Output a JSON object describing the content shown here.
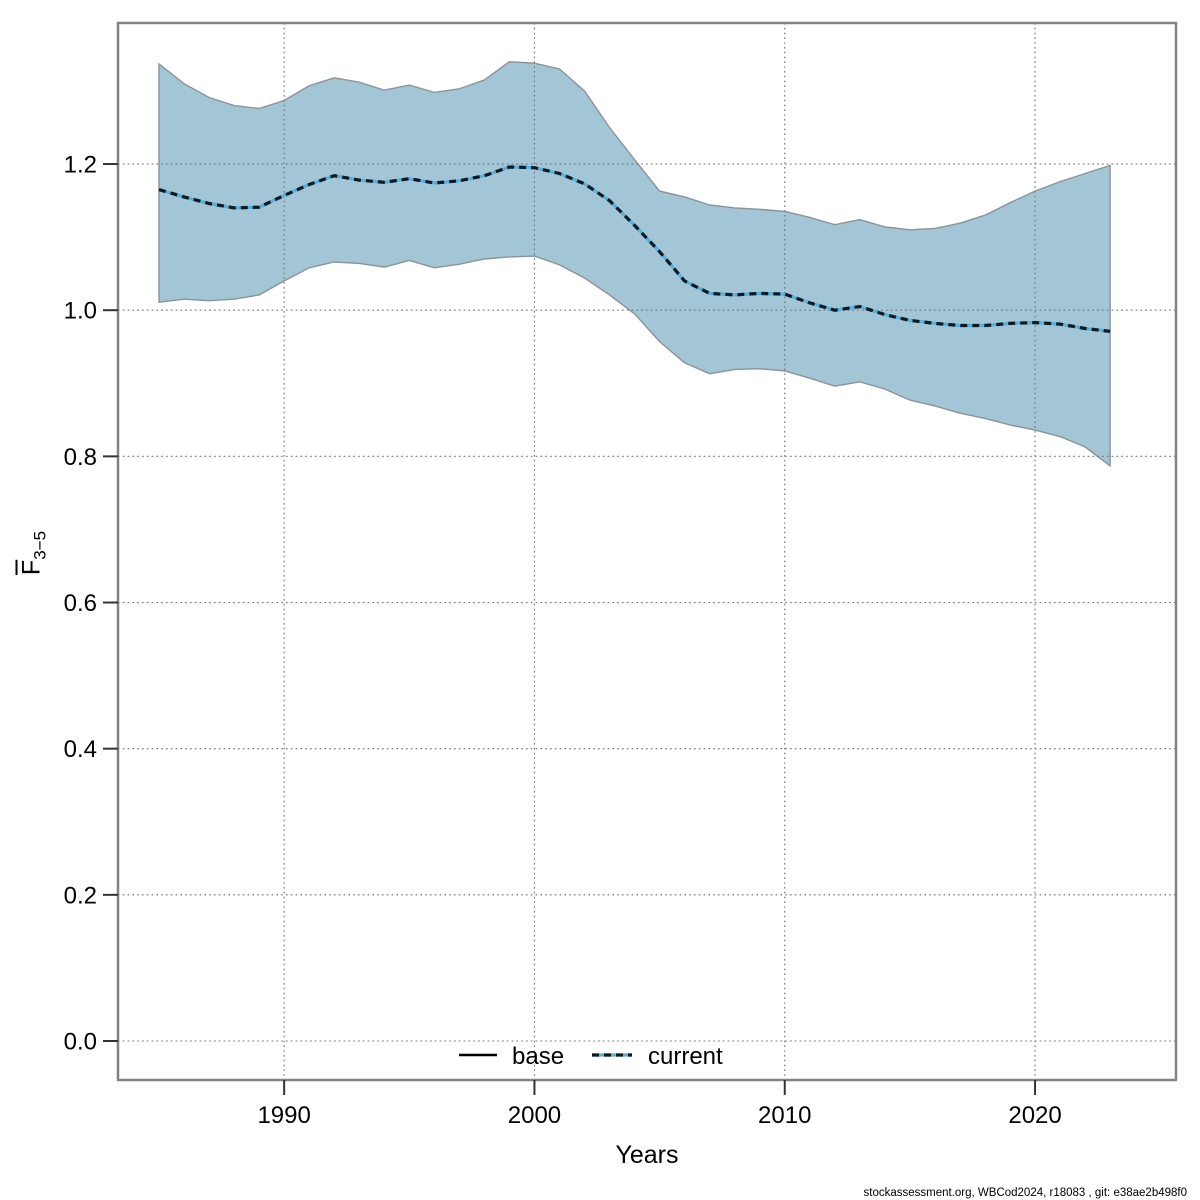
{
  "footer": {
    "credit": "stockassessment.org, WBCod2024, r18083 , git: e38ae2b498f0"
  },
  "legend": {
    "items": [
      {
        "label": "base",
        "style": "solid-black"
      },
      {
        "label": "current",
        "style": "dashed-blue"
      }
    ]
  },
  "axes": {
    "xlabel": "Years",
    "ylabel_main": "F",
    "ylabel_sub": "3−5",
    "y_ticks": [
      {
        "label": "0.0",
        "value": 0.0
      },
      {
        "label": "0.2",
        "value": 0.2
      },
      {
        "label": "0.4",
        "value": 0.4
      },
      {
        "label": "0.6",
        "value": 0.6
      },
      {
        "label": "0.8",
        "value": 0.8
      },
      {
        "label": "1.0",
        "value": 1.0
      },
      {
        "label": "1.2",
        "value": 1.2
      }
    ],
    "x_ticks": [
      {
        "label": "1990",
        "value": 1990
      },
      {
        "label": "2000",
        "value": 2000
      },
      {
        "label": "2010",
        "value": 2010
      },
      {
        "label": "2020",
        "value": 2020
      }
    ]
  },
  "colors": {
    "ribbon_fill": "#a3c6d6",
    "ribbon_edge": "#8b9399",
    "line_under": "#58b0dd",
    "line_dash": "#0d1a24",
    "legend_base_line": "#000000",
    "grid": "#6e6e6e",
    "frame": "#828282",
    "tick": "#333333",
    "footer_text": "#1a1a1a"
  },
  "chart_data": {
    "type": "line",
    "title": "",
    "xlabel": "Years",
    "ylabel": "Fbar(3-5)",
    "legend_position": "bottom-center-inside",
    "grid": "dotted",
    "xlim": [
      1983.4,
      2025.6
    ],
    "ylim": [
      -0.05,
      1.39
    ],
    "x": [
      1985,
      1986,
      1987,
      1988,
      1989,
      1990,
      1991,
      1992,
      1993,
      1994,
      1995,
      1996,
      1997,
      1998,
      1999,
      2000,
      2001,
      2002,
      2003,
      2004,
      2005,
      2006,
      2007,
      2008,
      2009,
      2010,
      2011,
      2012,
      2013,
      2014,
      2015,
      2016,
      2017,
      2018,
      2019,
      2020,
      2021,
      2022,
      2023
    ],
    "series": [
      {
        "name": "current",
        "line_style": "dotted",
        "values": [
          1.165,
          1.155,
          1.146,
          1.14,
          1.141,
          1.157,
          1.172,
          1.184,
          1.178,
          1.175,
          1.18,
          1.174,
          1.177,
          1.184,
          1.196,
          1.195,
          1.187,
          1.173,
          1.15,
          1.116,
          1.08,
          1.04,
          1.023,
          1.021,
          1.023,
          1.022,
          1.01,
          1.0,
          1.005,
          0.994,
          0.986,
          0.982,
          0.979,
          0.979,
          0.982,
          0.983,
          0.981,
          0.975,
          0.971
        ],
        "ci_high": [
          1.337,
          1.31,
          1.291,
          1.28,
          1.276,
          1.287,
          1.307,
          1.318,
          1.312,
          1.301,
          1.308,
          1.298,
          1.303,
          1.315,
          1.34,
          1.338,
          1.33,
          1.3,
          1.25,
          1.206,
          1.163,
          1.155,
          1.144,
          1.14,
          1.138,
          1.135,
          1.127,
          1.117,
          1.124,
          1.114,
          1.11,
          1.112,
          1.119,
          1.13,
          1.147,
          1.163,
          1.176,
          1.187,
          1.198
        ],
        "ci_low": [
          1.011,
          1.015,
          1.013,
          1.015,
          1.021,
          1.04,
          1.058,
          1.066,
          1.064,
          1.059,
          1.068,
          1.058,
          1.063,
          1.07,
          1.073,
          1.074,
          1.062,
          1.044,
          1.021,
          0.995,
          0.957,
          0.928,
          0.913,
          0.919,
          0.92,
          0.917,
          0.907,
          0.896,
          0.902,
          0.892,
          0.877,
          0.869,
          0.859,
          0.852,
          0.843,
          0.836,
          0.827,
          0.813,
          0.787
        ]
      },
      {
        "name": "base",
        "line_style": "solid",
        "note": "shown in legend; coincides with current in plot"
      }
    ]
  }
}
